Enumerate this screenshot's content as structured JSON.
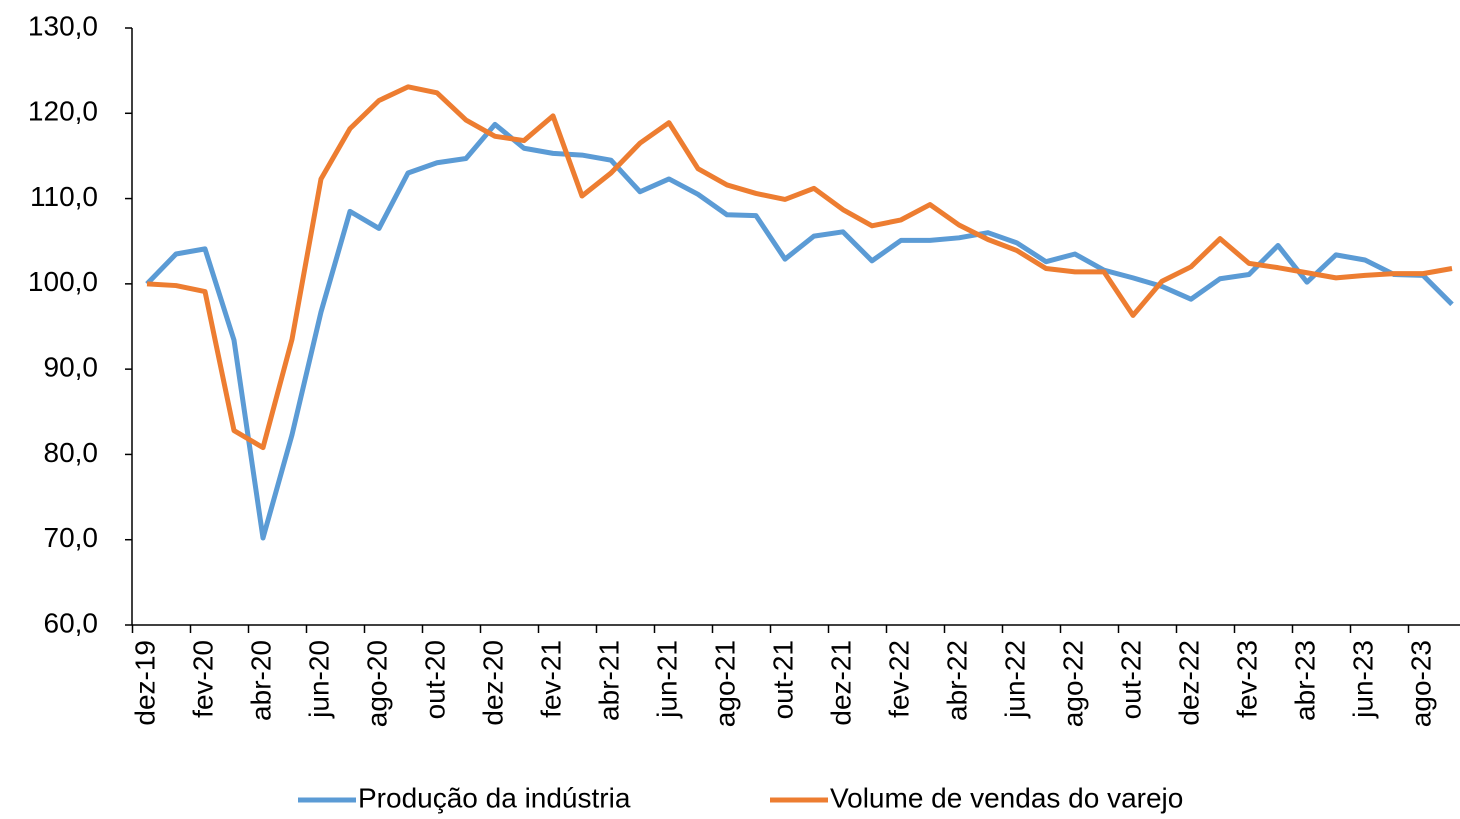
{
  "chart_data": {
    "type": "line",
    "categories": [
      "dez-19",
      null,
      "fev-20",
      null,
      "abr-20",
      null,
      "jun-20",
      null,
      "ago-20",
      null,
      "out-20",
      null,
      "dez-20",
      null,
      "fev-21",
      null,
      "abr-21",
      null,
      "jun-21",
      null,
      "ago-21",
      null,
      "out-21",
      null,
      "dez-21",
      null,
      "fev-22",
      null,
      "abr-22",
      null,
      "jun-22",
      null,
      "ago-22",
      null,
      "out-22",
      null,
      "dez-22",
      null,
      "fev-23",
      null,
      "abr-23",
      null,
      "jun-23",
      null,
      "ago-23",
      null
    ],
    "series": [
      {
        "name": "Produção da indústria",
        "color": "#5b9bd5",
        "values": [
          100.0,
          103.5,
          104.1,
          93.4,
          70.2,
          82.3,
          96.7,
          108.5,
          106.5,
          113.0,
          114.2,
          114.7,
          118.7,
          115.9,
          115.3,
          115.1,
          114.5,
          110.8,
          112.3,
          110.5,
          108.1,
          108.0,
          102.9,
          105.6,
          106.1,
          102.7,
          105.1,
          105.1,
          105.4,
          106.0,
          104.8,
          102.6,
          103.5,
          101.6,
          100.7,
          99.7,
          98.2,
          100.6,
          101.1,
          104.5,
          100.2,
          103.4,
          102.8,
          101.1,
          101.0,
          97.6
        ]
      },
      {
        "name": "Volume de vendas do varejo",
        "color": "#ed7d31",
        "values": [
          100.0,
          99.8,
          99.1,
          82.8,
          80.8,
          93.5,
          112.3,
          118.2,
          121.5,
          123.1,
          122.4,
          119.2,
          117.3,
          116.8,
          119.7,
          110.3,
          113.0,
          116.5,
          118.9,
          113.5,
          111.6,
          110.6,
          109.9,
          111.2,
          108.7,
          106.8,
          107.5,
          109.3,
          106.9,
          105.2,
          103.9,
          101.8,
          101.4,
          101.4,
          96.3,
          100.3,
          102.0,
          105.3,
          102.4,
          101.9,
          101.3,
          100.7,
          101.0,
          101.2,
          101.2,
          101.8
        ]
      }
    ],
    "ylim": [
      60,
      130
    ],
    "yticks": [
      {
        "value": 60,
        "label": "60,0"
      },
      {
        "value": 70,
        "label": "70,0"
      },
      {
        "value": 80,
        "label": "80,0"
      },
      {
        "value": 90,
        "label": "90,0"
      },
      {
        "value": 100,
        "label": "100,0"
      },
      {
        "value": 110,
        "label": "110,0"
      },
      {
        "value": 120,
        "label": "120,0"
      },
      {
        "value": 130,
        "label": "130,0"
      }
    ],
    "legend": "bottom"
  }
}
